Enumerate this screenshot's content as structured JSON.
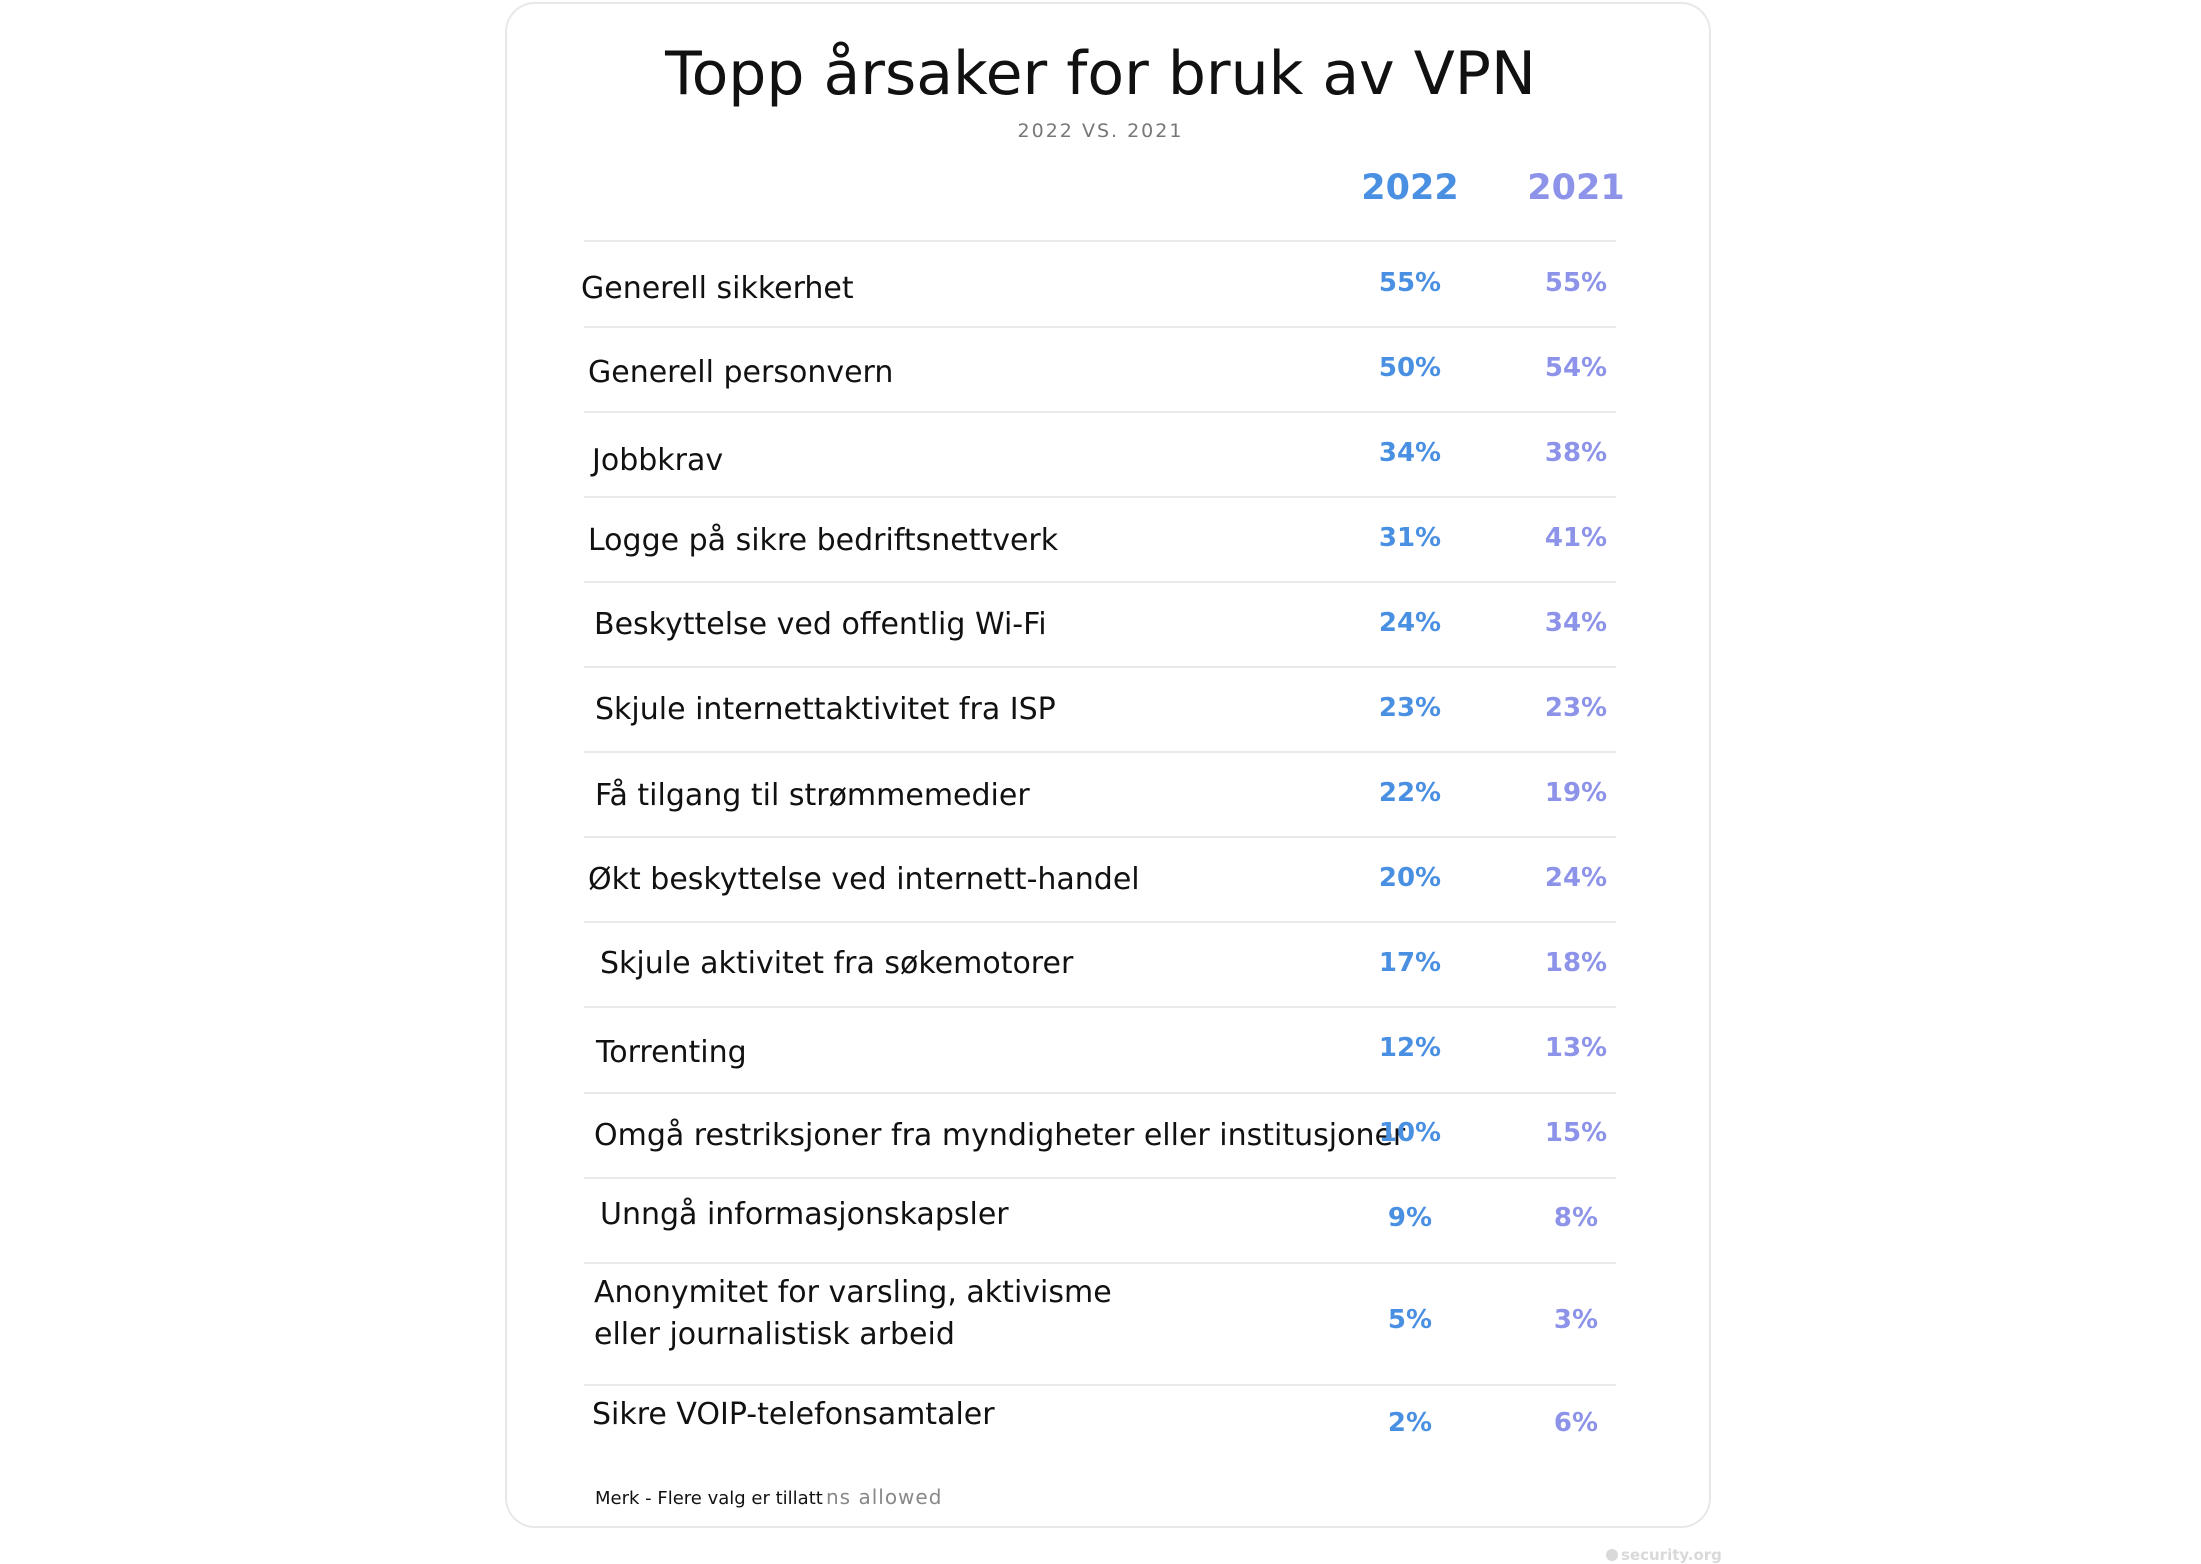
{
  "chart_data": {
    "type": "table",
    "title": "Topp årsaker for bruk av VPN",
    "subtitle": "2022 VS. 2021",
    "columns": [
      "2022",
      "2021"
    ],
    "rows": [
      {
        "label": "Generell sikkerhet",
        "v2022": "55%",
        "v2021": "55%"
      },
      {
        "label": "Generell personvern",
        "v2022": "50%",
        "v2021": "54%"
      },
      {
        "label": "Jobbkrav",
        "v2022": "34%",
        "v2021": "38%"
      },
      {
        "label": "Logge på sikre bedriftsnettverk",
        "v2022": "31%",
        "v2021": "41%"
      },
      {
        "label": "Beskyttelse ved offentlig Wi-Fi",
        "v2022": "24%",
        "v2021": "34%"
      },
      {
        "label": "Skjule internettaktivitet fra ISP",
        "v2022": "23%",
        "v2021": "23%"
      },
      {
        "label": "Få tilgang til strømmemedier",
        "v2022": "22%",
        "v2021": "19%"
      },
      {
        "label": "Økt beskyttelse ved internett-handel",
        "v2022": "20%",
        "v2021": "24%"
      },
      {
        "label": "Skjule aktivitet fra søkemotorer",
        "v2022": "17%",
        "v2021": "18%"
      },
      {
        "label": "Torrenting",
        "v2022": "12%",
        "v2021": "13%"
      },
      {
        "label": "Omgå restriksjoner fra myndigheter eller institusjoner",
        "v2022": "10%",
        "v2021": "15%"
      },
      {
        "label": "Unngå informasjonskapsler",
        "v2022": "9%",
        "v2021": "8%"
      },
      {
        "label": "Anonymitet for varsling, aktivisme\neller journalistisk arbeid",
        "v2022": "5%",
        "v2021": "3%"
      },
      {
        "label": "Sikre VOIP-telefonsamtaler",
        "v2022": "2%",
        "v2021": "6%"
      }
    ],
    "colors": {
      "2022": "#4a90e2",
      "2021": "#8c93e8"
    }
  },
  "footer": {
    "note": "Merk - Flere valg er tillatt",
    "note_remnant": "ns allowed",
    "brand": "security.org"
  }
}
